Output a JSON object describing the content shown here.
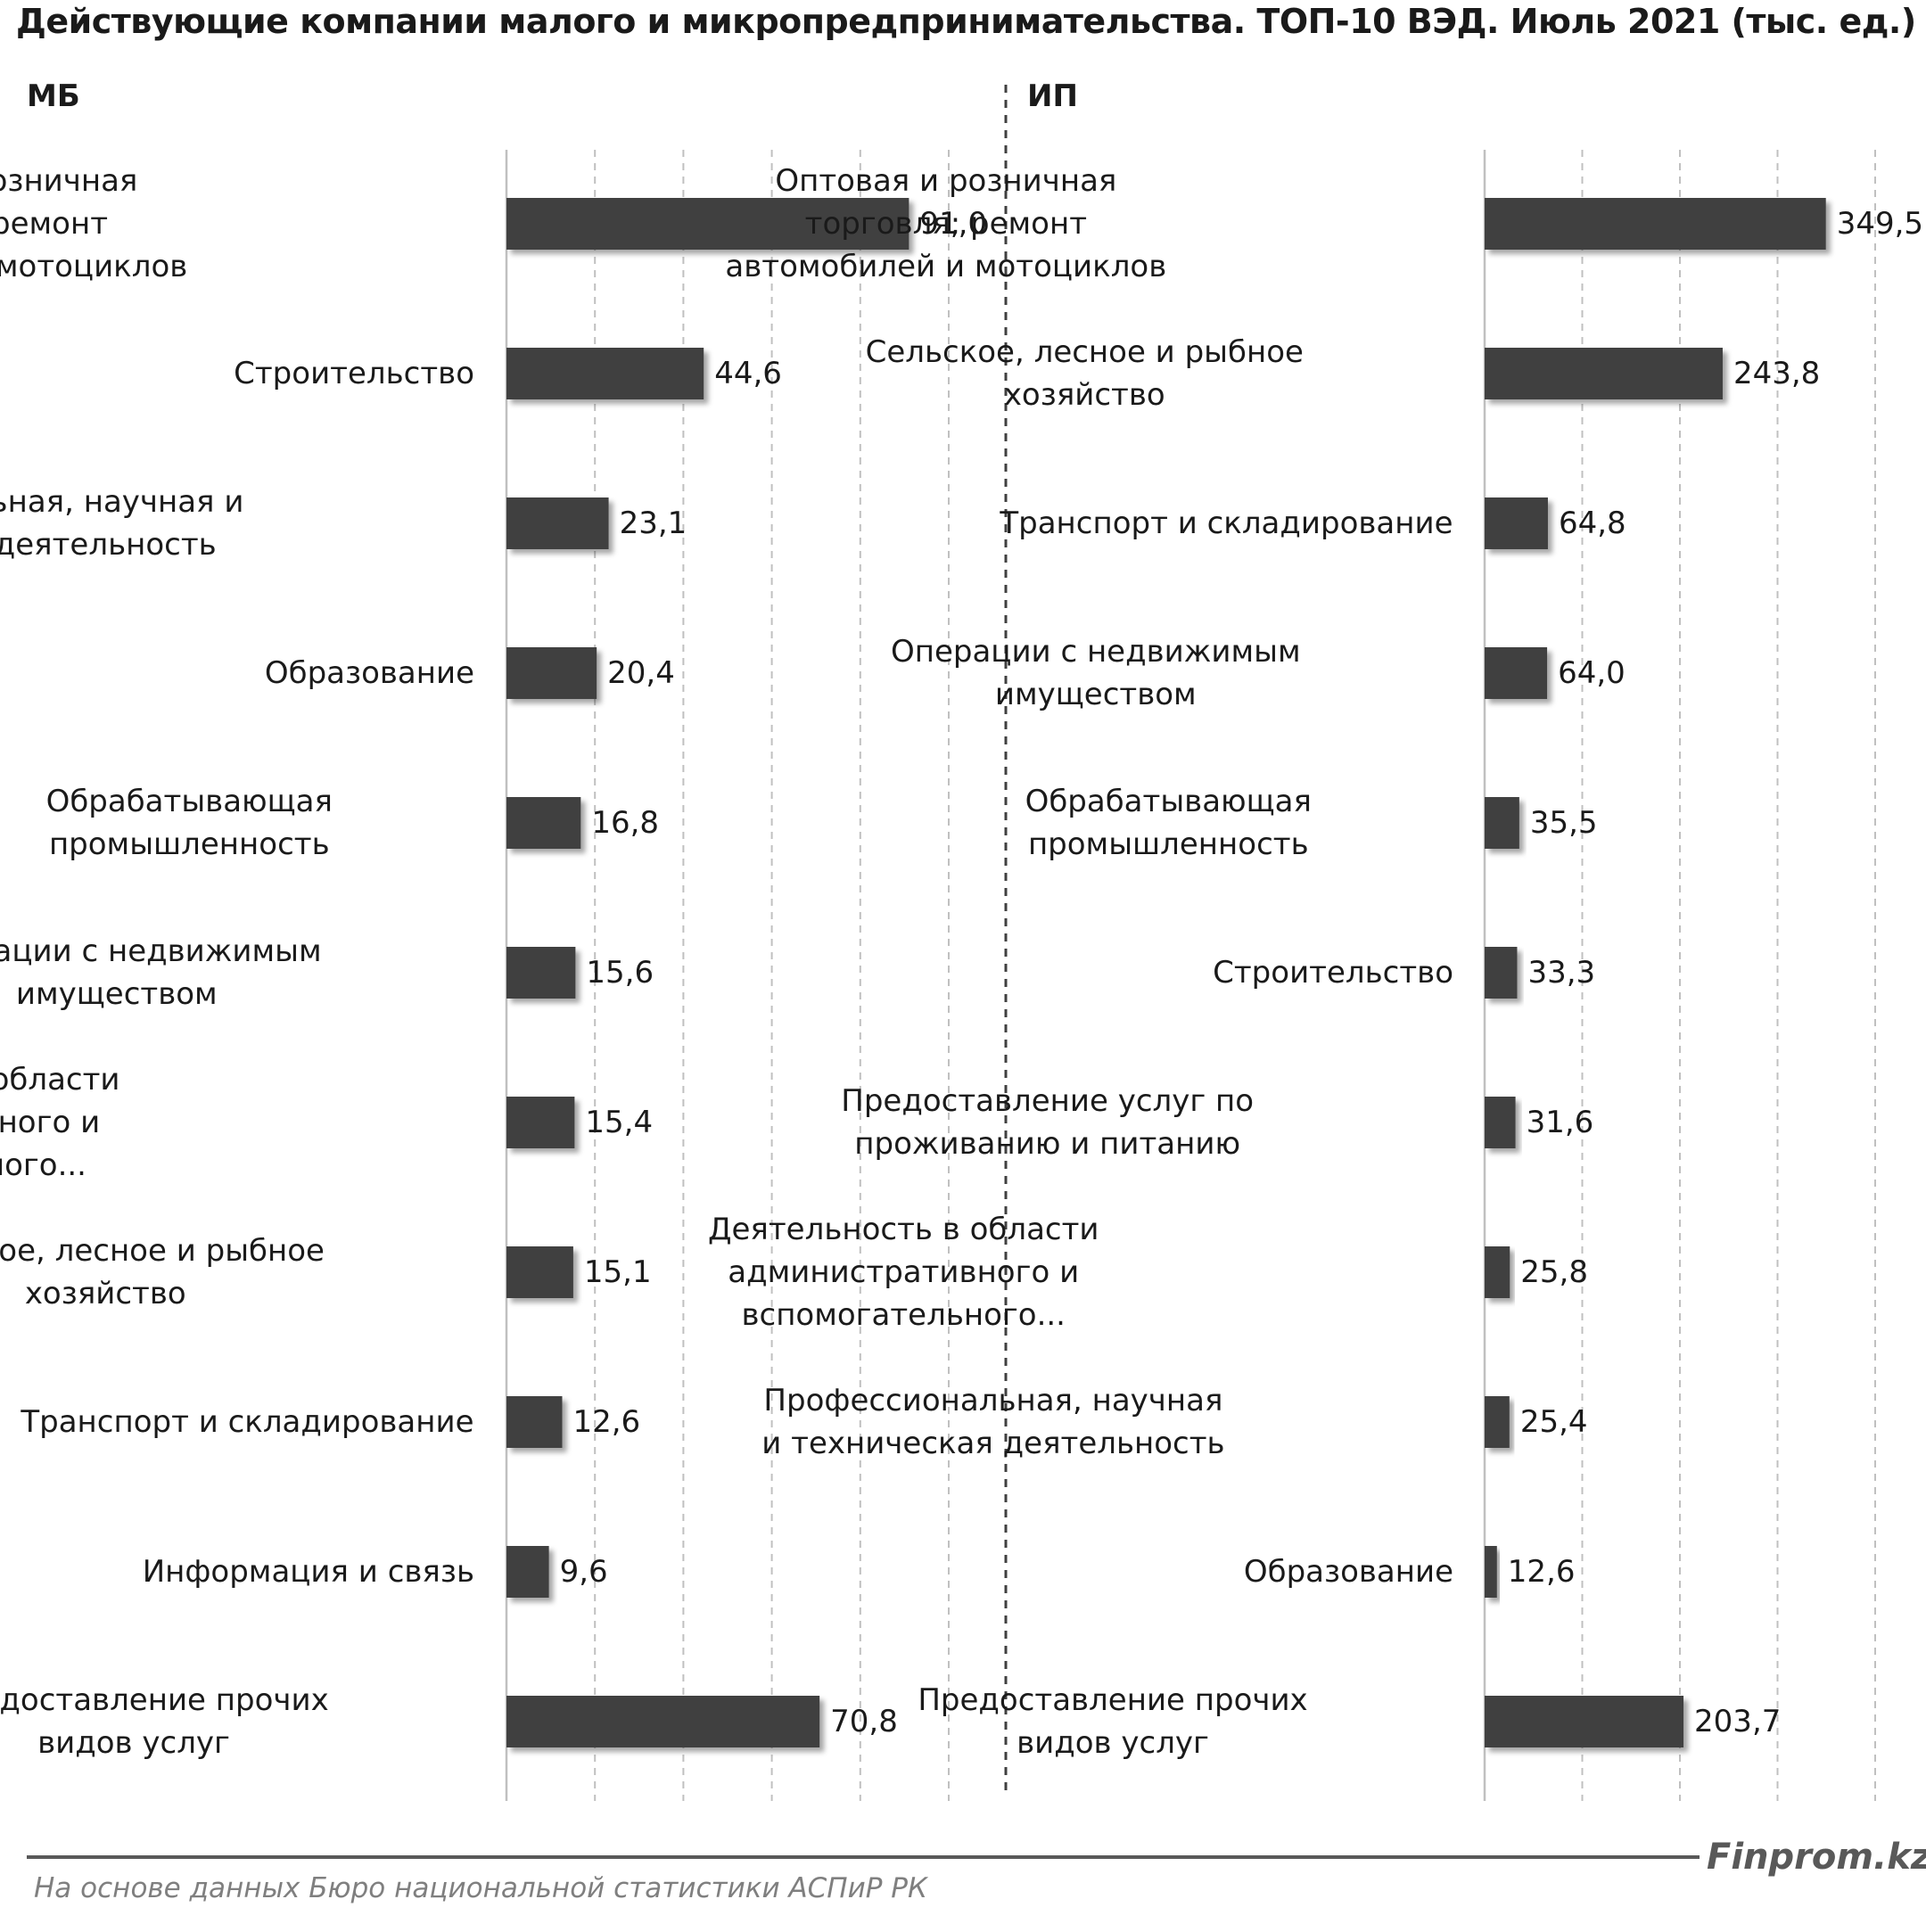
{
  "title": "Действующие компании малого и микропредпринимательства. ТОП-10 ВЭД. Июль 2021  (тыс. ед.)",
  "source": "На основе данных  Бюро национальной  статистики АСПиР РК",
  "brand": "Finprom.kz",
  "colors": {
    "bar": "#404040",
    "text": "#1a1a1a",
    "grid": "#c0c0c0",
    "divider": "#404040"
  },
  "chart_data": [
    {
      "type": "bar",
      "orientation": "horizontal",
      "panel_label": "МБ",
      "categories": [
        [
          "Оптовая и розничная",
          "торговля; ремонт",
          "автомобилей и мотоциклов"
        ],
        [
          "Строительство"
        ],
        [
          "Профессиональная, научная и",
          "техническая деятельность"
        ],
        [
          "Образование"
        ],
        [
          "Обрабатывающая",
          "промышленность"
        ],
        [
          "Операции с недвижимым",
          "имуществом"
        ],
        [
          "Деятельность в области",
          "административного и",
          "вспомогательного..."
        ],
        [
          "Сельское, лесное и рыбное",
          "хозяйство"
        ],
        [
          "Транспорт и складирование"
        ],
        [
          "Информация и связь"
        ],
        [
          "Предоставление прочих",
          "видов услуг"
        ]
      ],
      "values": [
        91.0,
        44.6,
        23.1,
        20.4,
        16.8,
        15.6,
        15.4,
        15.1,
        12.6,
        9.6,
        70.8
      ],
      "value_labels": [
        "91,0",
        "44,6",
        "23,1",
        "20,4",
        "16,8",
        "15,6",
        "15,4",
        "15,1",
        "12,6",
        "9,6",
        "70,8"
      ],
      "xlim": [
        0,
        100
      ],
      "gridlines": [
        0,
        20,
        40,
        60,
        80,
        100
      ],
      "grid": true
    },
    {
      "type": "bar",
      "orientation": "horizontal",
      "panel_label": "ИП",
      "categories": [
        [
          "Оптовая и розничная",
          "торговля; ремонт",
          "автомобилей и мотоциклов"
        ],
        [
          "Сельское, лесное и рыбное",
          "хозяйство"
        ],
        [
          "Транспорт и складирование"
        ],
        [
          "Операции с недвижимым",
          "имуществом"
        ],
        [
          "Обрабатывающая",
          "промышленность"
        ],
        [
          "Строительство"
        ],
        [
          "Предоставление услуг по",
          "проживанию и питанию"
        ],
        [
          "Деятельность в области",
          "административного и",
          "вспомогательного..."
        ],
        [
          "Профессиональная, научная",
          "и техническая деятельность"
        ],
        [
          "Образование"
        ],
        [
          "Предоставление прочих",
          "видов услуг"
        ]
      ],
      "values": [
        349.5,
        243.8,
        64.8,
        64.0,
        35.5,
        33.3,
        31.6,
        25.8,
        25.4,
        12.6,
        203.7
      ],
      "value_labels": [
        "349,5",
        "243,8",
        "64,8",
        "64,0",
        "35,5",
        "33,3",
        "31,6",
        "25,8",
        "25,4",
        "12,6",
        "203,7"
      ],
      "xlim": [
        0,
        400
      ],
      "gridlines": [
        0,
        100,
        200,
        300,
        400
      ],
      "grid": true
    }
  ]
}
